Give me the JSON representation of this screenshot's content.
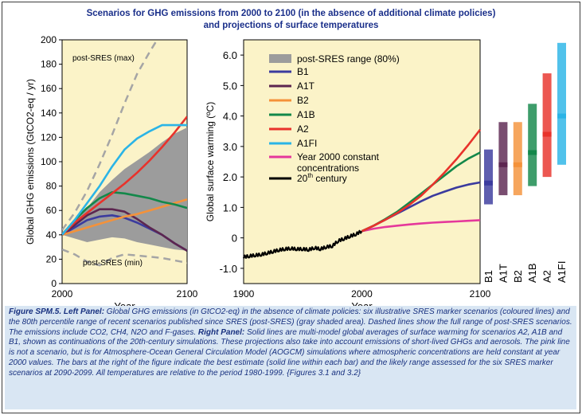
{
  "header": {
    "title_line1": "Scenarios for GHG emissions from 2000 to 2100 (in the absence of additional climate policies)",
    "title_line2": "and projections of surface temperatures"
  },
  "caption": {
    "figure_label": "Figure SPM.5.",
    "left_label": "Left Panel:",
    "left_text": " Global GHG emissions (in GtCO2-eq) in the absence of climate policies: six illustrative SRES marker scenarios (coloured lines) and the 80th percentile range of recent scenarios published since SRES (post-SRES) (gray shaded area). Dashed lines show the full range of post-SRES scenarios. The emissions include CO2, CH4, N2O and F-gases. ",
    "right_label": "Right Panel:",
    "right_text": " Solid lines are multi-model global averages of surface warming for scenarios A2, A1B and B1, shown as continuations of the 20th-century simulations. These projections also take into account emissions of short-lived GHGs and aerosols. The pink line is not a scenario, but is for Atmosphere-Ocean General Circulation Model (AOGCM) simulations where atmospheric concentrations are held constant at year 2000 values. The bars at the right of the figure indicate the best estimate (solid line within each bar) and the likely range assessed for the six SRES marker scenarios at 2090-2099. All temperatures are relative to the period 1980-1999. {Figures 3.1 and 3.2}"
  },
  "chart_data": [
    {
      "type": "line",
      "panel": "left",
      "ylabel": "Global GHG emissions (GtCO2-eq / yr)",
      "xlabel": "Year",
      "xlim": [
        2000,
        2100
      ],
      "ylim": [
        0,
        200
      ],
      "x_ticks": [
        "2000",
        "2100"
      ],
      "y_ticks": [
        "0",
        "20",
        "40",
        "60",
        "80",
        "100",
        "120",
        "140",
        "160",
        "180",
        "200"
      ],
      "annotations": [
        "post-SRES (max)",
        "post-SRES (min)"
      ],
      "band_80pct": {
        "x": [
          2000,
          2010,
          2020,
          2030,
          2040,
          2050,
          2060,
          2070,
          2080,
          2090,
          2100
        ],
        "upper": [
          42,
          52,
          62,
          75,
          85,
          94,
          101,
          108,
          116,
          123,
          128
        ],
        "lower": [
          40,
          37,
          34,
          36,
          38,
          37,
          34,
          32,
          30,
          28,
          27
        ]
      },
      "dashed_max": {
        "x": [
          2000,
          2010,
          2020,
          2030,
          2040,
          2050,
          2060,
          2070,
          2076
        ],
        "y": [
          44,
          58,
          76,
          98,
          122,
          148,
          172,
          190,
          200
        ]
      },
      "dashed_min": {
        "x": [
          2000,
          2010,
          2020,
          2030,
          2040,
          2050,
          2060,
          2070,
          2080,
          2090,
          2100
        ],
        "y": [
          28,
          24,
          18,
          15,
          21,
          24,
          23,
          22,
          21,
          19,
          17
        ]
      },
      "series": [
        {
          "name": "B1",
          "color": "#3b3b9e",
          "x": [
            2000,
            2010,
            2020,
            2030,
            2040,
            2050,
            2060,
            2070,
            2080,
            2090,
            2100
          ],
          "y": [
            40,
            46,
            52,
            55,
            56,
            54,
            50,
            45,
            40,
            33,
            27
          ]
        },
        {
          "name": "A1T",
          "color": "#5c2650",
          "x": [
            2000,
            2010,
            2020,
            2030,
            2040,
            2050,
            2060,
            2070,
            2080,
            2090,
            2100
          ],
          "y": [
            40,
            48,
            56,
            61,
            61,
            59,
            53,
            46,
            40,
            33,
            27
          ]
        },
        {
          "name": "B2",
          "color": "#f4923a",
          "x": [
            2000,
            2010,
            2020,
            2030,
            2040,
            2050,
            2060,
            2070,
            2080,
            2090,
            2100
          ],
          "y": [
            40,
            43,
            46,
            49,
            52,
            55,
            57,
            60,
            63,
            66,
            69
          ]
        },
        {
          "name": "A1B",
          "color": "#13884a",
          "x": [
            2000,
            2010,
            2020,
            2030,
            2040,
            2050,
            2060,
            2070,
            2080,
            2090,
            2100
          ],
          "y": [
            40,
            52,
            62,
            70,
            75,
            74,
            72,
            70,
            67,
            65,
            62
          ]
        },
        {
          "name": "A2",
          "color": "#e8322b",
          "x": [
            2000,
            2010,
            2020,
            2030,
            2040,
            2050,
            2060,
            2070,
            2080,
            2090,
            2100
          ],
          "y": [
            40,
            50,
            58,
            66,
            74,
            82,
            91,
            101,
            112,
            124,
            137
          ]
        },
        {
          "name": "A1FI",
          "color": "#2bb4e6",
          "x": [
            2000,
            2010,
            2020,
            2030,
            2040,
            2050,
            2060,
            2070,
            2080,
            2090,
            2100
          ],
          "y": [
            40,
            52,
            66,
            80,
            96,
            110,
            119,
            125,
            130,
            130,
            130
          ]
        }
      ]
    },
    {
      "type": "line",
      "panel": "right",
      "ylabel": "Global surface warming (ºC)",
      "xlabel": "Year",
      "xlim": [
        1900,
        2100
      ],
      "ylim": [
        -1.5,
        6.5
      ],
      "x_ticks": [
        "1900",
        "2000",
        "2100"
      ],
      "y_ticks": [
        "-1.0",
        "0",
        "1.0",
        "2.0",
        "3.0",
        "4.0",
        "5.0",
        "6.0"
      ],
      "legend": {
        "band_label": "post-SRES range (80%)",
        "entries": [
          "B1",
          "A1T",
          "B2",
          "A1B",
          "A2",
          "A1FI",
          "Year 2000 constant",
          "concentrations",
          "20",
          "th",
          " century"
        ]
      },
      "series": [
        {
          "name": "20th century",
          "color": "#000000",
          "x": [
            1900,
            1905,
            1910,
            1915,
            1920,
            1925,
            1930,
            1935,
            1940,
            1945,
            1950,
            1955,
            1960,
            1965,
            1970,
            1975,
            1980,
            1985,
            1990,
            1995,
            2000
          ],
          "y": [
            -0.63,
            -0.6,
            -0.57,
            -0.55,
            -0.5,
            -0.45,
            -0.4,
            -0.37,
            -0.35,
            -0.37,
            -0.37,
            -0.39,
            -0.33,
            -0.37,
            -0.3,
            -0.27,
            -0.1,
            -0.03,
            0.05,
            0.12,
            0.22
          ]
        },
        {
          "name": "Year 2000 constant concentrations",
          "color": "#e5389b",
          "x": [
            2000,
            2010,
            2020,
            2030,
            2040,
            2050,
            2060,
            2070,
            2080,
            2090,
            2100
          ],
          "y": [
            0.22,
            0.3,
            0.36,
            0.4,
            0.44,
            0.47,
            0.5,
            0.52,
            0.54,
            0.56,
            0.58
          ]
        },
        {
          "name": "B1",
          "color": "#3b3b9e",
          "x": [
            2000,
            2010,
            2020,
            2030,
            2040,
            2050,
            2060,
            2070,
            2080,
            2090,
            2100
          ],
          "y": [
            0.22,
            0.4,
            0.6,
            0.8,
            1.0,
            1.2,
            1.38,
            1.52,
            1.65,
            1.75,
            1.82
          ]
        },
        {
          "name": "A1B",
          "color": "#13884a",
          "x": [
            2000,
            2010,
            2020,
            2030,
            2040,
            2050,
            2060,
            2070,
            2080,
            2090,
            2100
          ],
          "y": [
            0.22,
            0.4,
            0.62,
            0.86,
            1.15,
            1.45,
            1.75,
            2.05,
            2.35,
            2.6,
            2.8
          ]
        },
        {
          "name": "A2",
          "color": "#e8322b",
          "x": [
            2000,
            2010,
            2020,
            2030,
            2040,
            2050,
            2060,
            2070,
            2080,
            2090,
            2100
          ],
          "y": [
            0.22,
            0.4,
            0.6,
            0.82,
            1.08,
            1.38,
            1.75,
            2.15,
            2.58,
            3.05,
            3.55
          ]
        }
      ],
      "bars_2090_2099": [
        {
          "name": "B1",
          "color": "#3b3b9e",
          "low": 1.1,
          "high": 2.9,
          "best": 1.8
        },
        {
          "name": "A1T",
          "color": "#5c2650",
          "low": 1.4,
          "high": 3.8,
          "best": 2.4
        },
        {
          "name": "B2",
          "color": "#f4923a",
          "low": 1.4,
          "high": 3.8,
          "best": 2.4
        },
        {
          "name": "A1B",
          "color": "#13884a",
          "low": 1.7,
          "high": 4.4,
          "best": 2.8
        },
        {
          "name": "A2",
          "color": "#e8322b",
          "low": 2.0,
          "high": 5.4,
          "best": 3.4
        },
        {
          "name": "A1FI",
          "color": "#2bb4e6",
          "low": 2.4,
          "high": 6.4,
          "best": 4.0
        }
      ]
    }
  ]
}
